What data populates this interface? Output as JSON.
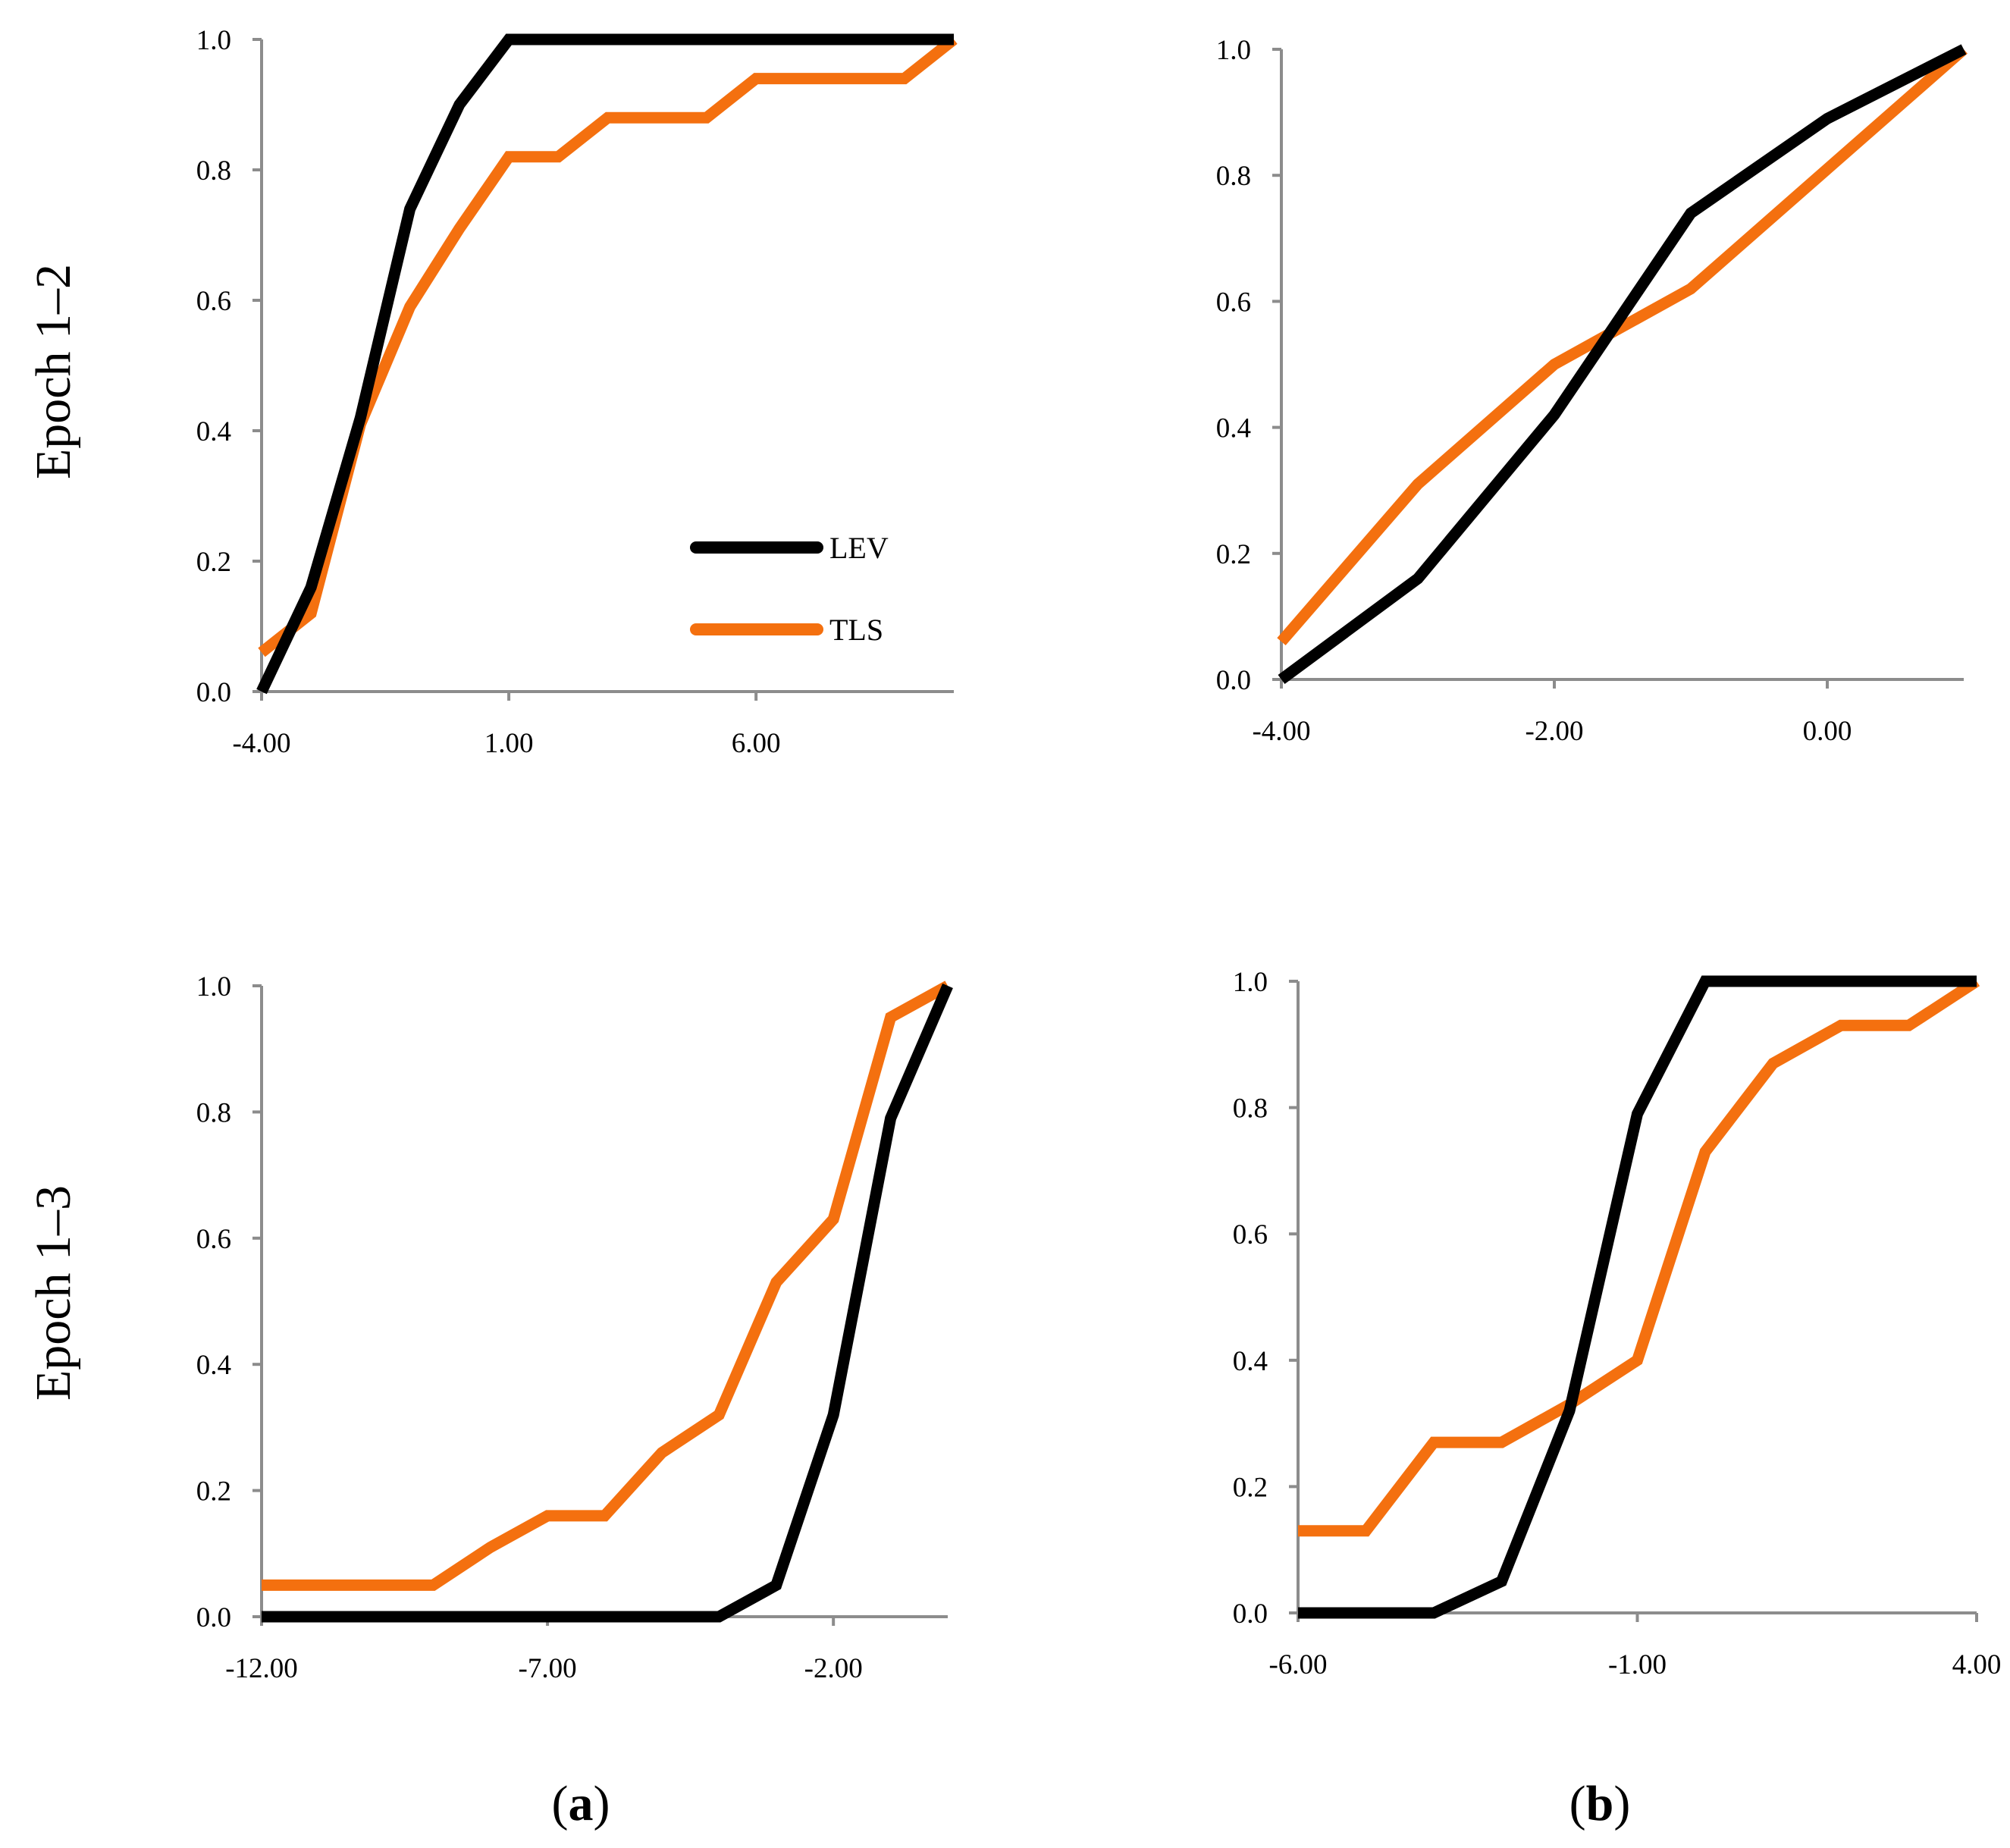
{
  "row_labels": [
    "Epoch 1–2",
    "Epoch 1–3"
  ],
  "captions": [
    {
      "open": "(",
      "letter": "a",
      "close": ")"
    },
    {
      "open": "(",
      "letter": "b",
      "close": ")"
    }
  ],
  "colors": {
    "LEV": "#000000",
    "TLS": "#f4700f",
    "axis": "#8c8c8c"
  },
  "chart_data": [
    {
      "id": "a-top",
      "type": "line",
      "row_label": "Epoch 1–2",
      "column": "a",
      "xlim": [
        -4,
        10
      ],
      "ylim": [
        0,
        1
      ],
      "x_ticks": [
        -4,
        1,
        6
      ],
      "x_tick_labels": [
        "-4.00",
        "1.00",
        "6.00"
      ],
      "y_ticks": [
        0,
        0.2,
        0.4,
        0.6,
        0.8,
        1.0
      ],
      "y_tick_labels": [
        "0.0",
        "0.2",
        "0.4",
        "0.6",
        "0.8",
        "1.0"
      ],
      "legend": {
        "placement": "lower-right",
        "entries": [
          "LEV",
          "TLS"
        ]
      },
      "series": [
        {
          "name": "LEV",
          "x": [
            -4,
            -3,
            -2,
            -1,
            0,
            1,
            2,
            3,
            4,
            5,
            6,
            7,
            8,
            9,
            10
          ],
          "y": [
            0,
            0.16,
            0.42,
            0.74,
            0.9,
            1.0,
            1.0,
            1.0,
            1.0,
            1.0,
            1.0,
            1.0,
            1.0,
            1.0,
            1.0
          ]
        },
        {
          "name": "TLS",
          "x": [
            -4,
            -3,
            -2,
            -1,
            0,
            1,
            2,
            3,
            4,
            5,
            6,
            7,
            8,
            9,
            10
          ],
          "y": [
            0.06,
            0.12,
            0.41,
            0.59,
            0.71,
            0.82,
            0.82,
            0.88,
            0.88,
            0.88,
            0.94,
            0.94,
            0.94,
            0.94,
            1.0
          ]
        }
      ]
    },
    {
      "id": "b-top",
      "type": "line",
      "row_label": "Epoch 1–2",
      "column": "b",
      "xlim": [
        -4,
        1
      ],
      "ylim": [
        0,
        1
      ],
      "x_ticks": [
        -4,
        -2,
        0
      ],
      "x_tick_labels": [
        "-4.00",
        "-2.00",
        "0.00"
      ],
      "y_ticks": [
        0,
        0.2,
        0.4,
        0.6,
        0.8,
        1.0
      ],
      "y_tick_labels": [
        "0.0",
        "0.2",
        "0.4",
        "0.6",
        "0.8",
        "1.0"
      ],
      "series": [
        {
          "name": "LEV",
          "x": [
            -4,
            -3,
            -2,
            -1,
            0,
            1
          ],
          "y": [
            0,
            0.16,
            0.42,
            0.74,
            0.89,
            1.0
          ]
        },
        {
          "name": "TLS",
          "x": [
            -4,
            -3,
            -2,
            -1,
            0,
            1
          ],
          "y": [
            0.06,
            0.31,
            0.5,
            0.62,
            0.81,
            1.0
          ]
        }
      ]
    },
    {
      "id": "a-bottom",
      "type": "line",
      "row_label": "Epoch 1–3",
      "column": "a",
      "xlim": [
        -12,
        0
      ],
      "ylim": [
        0,
        1
      ],
      "x_ticks": [
        -12,
        -7,
        -2
      ],
      "x_tick_labels": [
        "-12.00",
        "-7.00",
        "-2.00"
      ],
      "y_ticks": [
        0,
        0.2,
        0.4,
        0.6,
        0.8,
        1.0
      ],
      "y_tick_labels": [
        "0.0",
        "0.2",
        "0.4",
        "0.6",
        "0.8",
        "1.0"
      ],
      "series": [
        {
          "name": "LEV",
          "x": [
            -12,
            -11,
            -10,
            -9,
            -8,
            -7,
            -6,
            -5,
            -4,
            -3,
            -2,
            -1,
            0
          ],
          "y": [
            0,
            0,
            0,
            0,
            0,
            0,
            0,
            0,
            0,
            0.05,
            0.32,
            0.79,
            1.0
          ]
        },
        {
          "name": "TLS",
          "x": [
            -12,
            -11,
            -10,
            -9,
            -8,
            -7,
            -6,
            -5,
            -4,
            -3,
            -2,
            -1,
            0
          ],
          "y": [
            0.05,
            0.05,
            0.05,
            0.05,
            0.11,
            0.16,
            0.16,
            0.26,
            0.32,
            0.53,
            0.63,
            0.95,
            1.0
          ]
        }
      ]
    },
    {
      "id": "b-bottom",
      "type": "line",
      "row_label": "Epoch 1–3",
      "column": "b",
      "xlim": [
        -6,
        4
      ],
      "ylim": [
        0,
        1
      ],
      "x_ticks": [
        -6,
        -1,
        4
      ],
      "x_tick_labels": [
        "-6.00",
        "-1.00",
        "4.00"
      ],
      "y_ticks": [
        0,
        0.2,
        0.4,
        0.6,
        0.8,
        1.0
      ],
      "y_tick_labels": [
        "0.0",
        "0.2",
        "0.4",
        "0.6",
        "0.8",
        "1.0"
      ],
      "series": [
        {
          "name": "LEV",
          "x": [
            -6,
            -5,
            -4,
            -3,
            -2,
            -1,
            0,
            1,
            2,
            3,
            4
          ],
          "y": [
            0,
            0,
            0,
            0.05,
            0.32,
            0.79,
            1.0,
            1.0,
            1.0,
            1.0,
            1.0
          ]
        },
        {
          "name": "TLS",
          "x": [
            -6,
            -5,
            -4,
            -3,
            -2,
            -1,
            0,
            1,
            2,
            3,
            4
          ],
          "y": [
            0.13,
            0.13,
            0.27,
            0.27,
            0.33,
            0.4,
            0.73,
            0.87,
            0.93,
            0.93,
            1.0
          ]
        }
      ]
    }
  ]
}
